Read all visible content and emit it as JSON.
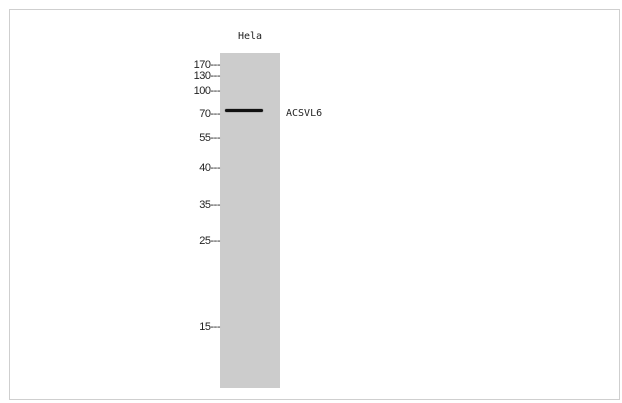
{
  "blot": {
    "lane_label": "Hela",
    "band_label": "ACSVL6",
    "markers": [
      "170---",
      "130---",
      "100---",
      "70---",
      "55---",
      "40---",
      "35---",
      "25---",
      "15---"
    ]
  }
}
